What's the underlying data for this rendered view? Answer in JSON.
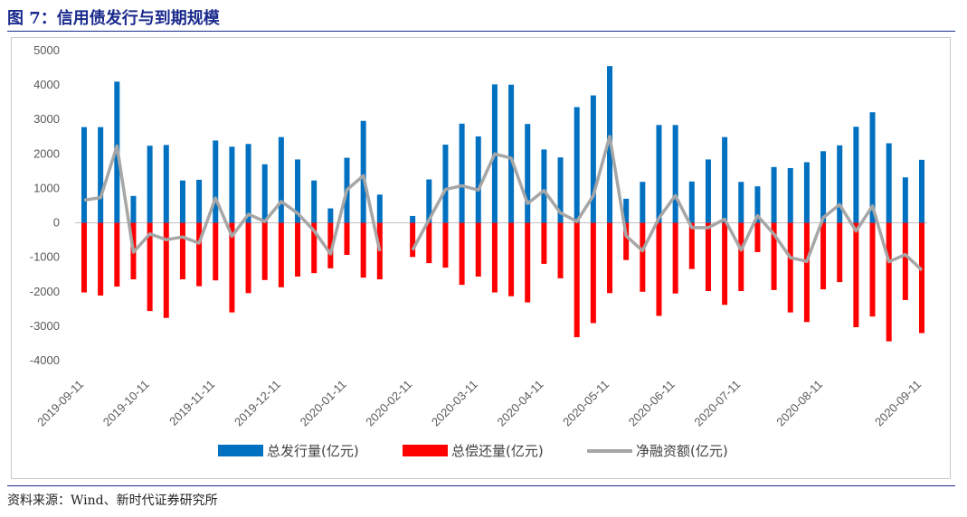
{
  "title": "图 7：信用债发行与到期规模",
  "source": "资料来源：Wind、新时代证券研究所",
  "chart_data": {
    "type": "bar",
    "yticks": [
      5000,
      4000,
      3000,
      2000,
      1000,
      0,
      -1000,
      -2000,
      -3000,
      -4000
    ],
    "ylim": [
      -4000,
      5000
    ],
    "grid": false,
    "legend_position": "bottom",
    "x_ticks": [
      "2019-09-11",
      "2019-10-11",
      "2019-11-11",
      "2019-12-11",
      "2020-01-11",
      "2020-02-11",
      "2020-03-11",
      "2020-04-11",
      "2020-05-11",
      "2020-06-11",
      "2020-07-11",
      "2020-08-11",
      "2020-09-11"
    ],
    "series": [
      {
        "name": "总发行量(亿元)",
        "color": "#0070c0",
        "values": [
          2780,
          2780,
          4100,
          780,
          2240,
          2260,
          1230,
          1250,
          2390,
          2210,
          2290,
          1700,
          2490,
          1840,
          1230,
          420,
          1890,
          2960,
          820,
          null,
          200,
          1260,
          2270,
          2880,
          2510,
          4020,
          4010,
          2870,
          2130,
          1900,
          3360,
          3700,
          4550,
          700,
          1190,
          2840,
          2840,
          1200,
          1840,
          2490,
          1190,
          1060,
          1620,
          1590,
          1760,
          2080,
          2250,
          2790,
          3210,
          2310,
          1320,
          1830
        ]
      },
      {
        "name": "总偿还量(亿元)",
        "color": "#ff0000",
        "values": [
          -2020,
          -2110,
          -1850,
          -1640,
          -2560,
          -2760,
          -1640,
          -1840,
          -1670,
          -2600,
          -2040,
          -1660,
          -1870,
          -1560,
          -1460,
          -1320,
          -930,
          -1590,
          -1640,
          null,
          -990,
          -1170,
          -1300,
          -1800,
          -1560,
          -2020,
          -2130,
          -2310,
          -1190,
          -1610,
          -3320,
          -2910,
          -2040,
          -1080,
          -2000,
          -2700,
          -2050,
          -1340,
          -1980,
          -2380,
          -1980,
          -850,
          -1950,
          -2600,
          -2880,
          -1930,
          -1720,
          -3030,
          -2720,
          -3440,
          -2240,
          -3200
        ]
      },
      {
        "name": "净融资额(亿元)",
        "color": "#a6a6a6",
        "type": "line",
        "values": [
          660,
          730,
          2230,
          -850,
          -320,
          -490,
          -410,
          -590,
          720,
          -390,
          250,
          40,
          620,
          280,
          -230,
          -900,
          960,
          1370,
          -820,
          null,
          -790,
          90,
          970,
          1080,
          950,
          2000,
          1880,
          560,
          940,
          290,
          40,
          790,
          2510,
          -380,
          -810,
          140,
          790,
          -140,
          -140,
          110,
          -790,
          210,
          -330,
          -1010,
          -1120,
          150,
          530,
          -240,
          490,
          -1130,
          -920,
          -1370
        ]
      }
    ]
  }
}
